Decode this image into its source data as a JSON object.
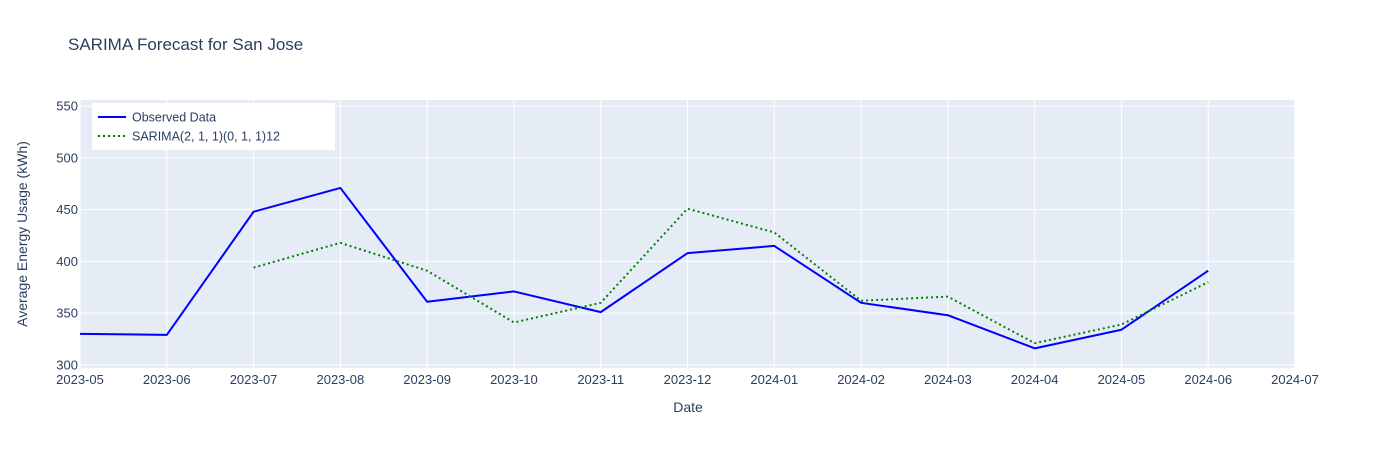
{
  "chart_data": {
    "type": "line",
    "title": "SARIMA Forecast for San Jose",
    "xlabel": "Date",
    "ylabel": "Average Energy Usage (kWh)",
    "x_ticks": [
      "2023-05",
      "2023-06",
      "2023-07",
      "2023-08",
      "2023-09",
      "2023-10",
      "2023-11",
      "2023-12",
      "2024-01",
      "2024-02",
      "2024-03",
      "2024-04",
      "2024-05",
      "2024-06",
      "2024-07"
    ],
    "y_ticks": [
      300,
      350,
      400,
      450,
      500,
      550
    ],
    "xlim": [
      "2023-05-01",
      "2024-07-01"
    ],
    "ylim": [
      297,
      556
    ],
    "grid": true,
    "legend_position": "top-left",
    "series": [
      {
        "name": "Observed Data",
        "color": "#0000ff",
        "line_style": "solid",
        "x": [
          "2023-05-01",
          "2023-06-01",
          "2023-07-01",
          "2023-08-01",
          "2023-09-01",
          "2023-10-01",
          "2023-11-01",
          "2023-12-01",
          "2024-01-01",
          "2024-02-01",
          "2024-03-01",
          "2024-04-01",
          "2024-05-01",
          "2024-06-01"
        ],
        "y": [
          330,
          329,
          448,
          471,
          361,
          371,
          351,
          408,
          415,
          360,
          348,
          316,
          334,
          391
        ]
      },
      {
        "name": "SARIMA(2, 1, 1)(0, 1, 1)12",
        "color": "#008000",
        "line_style": "dotted",
        "x": [
          "2023-07-01",
          "2023-08-01",
          "2023-09-01",
          "2023-10-01",
          "2023-11-01",
          "2023-12-01",
          "2024-01-01",
          "2024-02-01",
          "2024-03-01",
          "2024-04-01",
          "2024-05-01",
          "2024-06-01"
        ],
        "y": [
          394,
          418,
          391,
          341,
          360,
          451,
          428,
          362,
          366,
          321,
          339,
          380
        ]
      }
    ]
  }
}
